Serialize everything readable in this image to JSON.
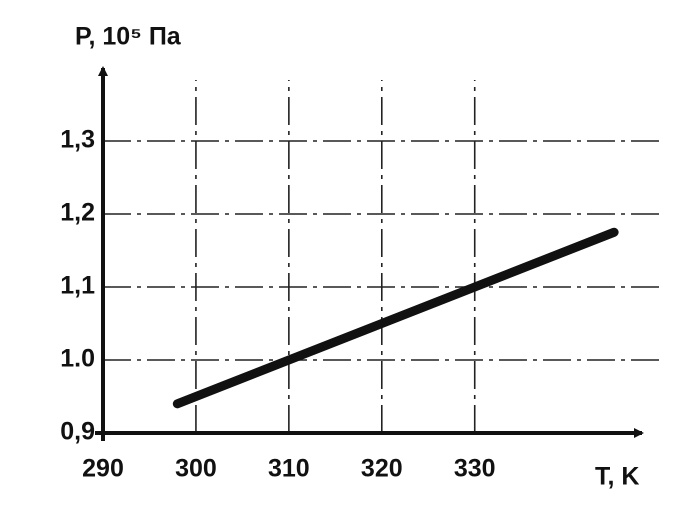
{
  "chart_data": {
    "type": "line",
    "y_label": "P, 10⁵ Па",
    "x_label": "T, K",
    "x": [
      298,
      345
    ],
    "values": [
      0.94,
      1.175
    ],
    "color": "#111111",
    "xlim": [
      290,
      348
    ],
    "ylim": [
      0.9,
      1.4
    ],
    "xticks": [
      290,
      300,
      310,
      320,
      330
    ],
    "yticks": [
      {
        "value": 0.9,
        "label": "0,9"
      },
      {
        "value": 1.0,
        "label": "1.0"
      },
      {
        "value": 1.1,
        "label": "1,1"
      },
      {
        "value": 1.2,
        "label": "1,2"
      },
      {
        "value": 1.3,
        "label": "1,3"
      }
    ],
    "grid": true
  }
}
